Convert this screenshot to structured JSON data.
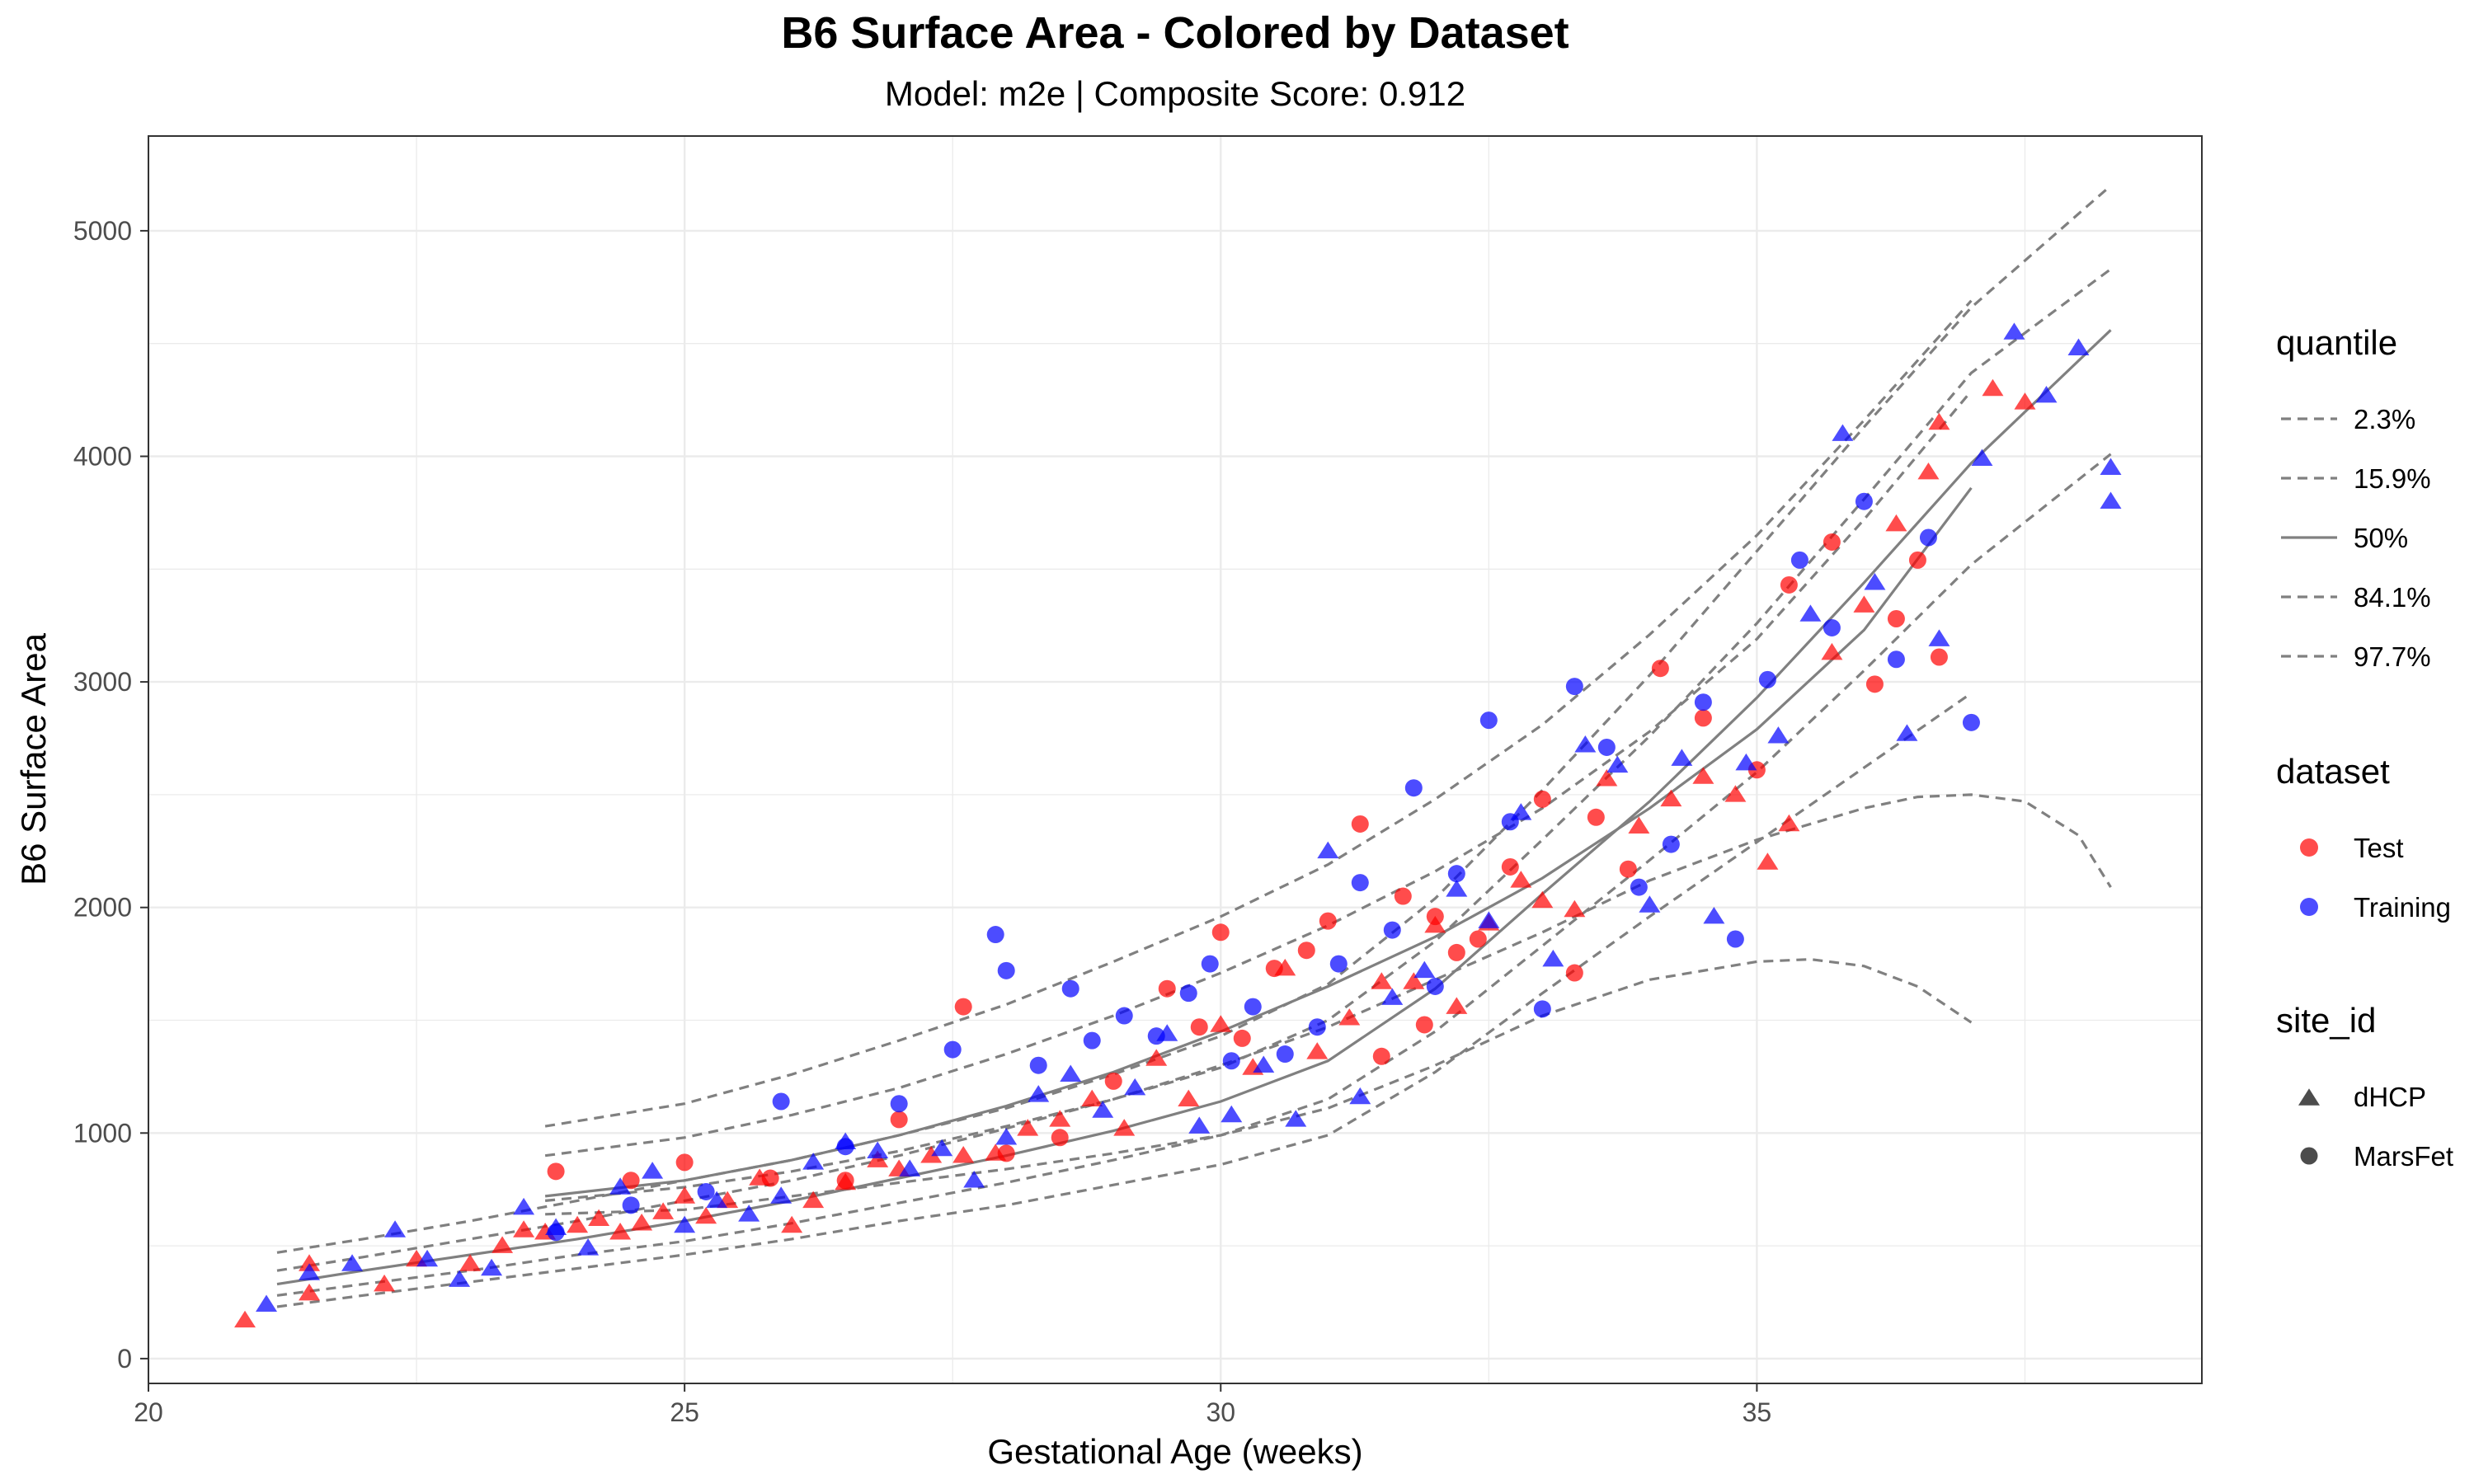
{
  "chart_data": {
    "type": "scatter",
    "title": "B6 Surface Area - Colored by Dataset",
    "subtitle": "Model: m2e | Composite Score: 0.912",
    "xlabel": "Gestational Age (weeks)",
    "ylabel": "B6 Surface Area",
    "xlim": [
      20,
      39.15
    ],
    "ylim": [
      -110,
      5420
    ],
    "x_ticks": [
      20,
      25,
      30,
      35
    ],
    "y_ticks": [
      0,
      1000,
      2000,
      3000,
      4000,
      5000
    ],
    "grid": true,
    "legend_position": "right",
    "colors": {
      "Test": "#ff0000",
      "Training": "#0000ff",
      "quantile_line": "#808080",
      "grid": "#ebebeb",
      "panel_border": "#333333"
    },
    "legends": [
      {
        "title": "quantile",
        "items": [
          {
            "label": "2.3%",
            "line": "dashed"
          },
          {
            "label": "15.9%",
            "line": "dashed"
          },
          {
            "label": "50%",
            "line": "solid"
          },
          {
            "label": "84.1%",
            "line": "dashed"
          },
          {
            "label": "97.7%",
            "line": "dashed"
          }
        ]
      },
      {
        "title": "dataset",
        "items": [
          {
            "label": "Test",
            "color": "#ff0000"
          },
          {
            "label": "Training",
            "color": "#0000ff"
          }
        ]
      },
      {
        "title": "site_id",
        "items": [
          {
            "label": "dHCP",
            "shape": "triangle"
          },
          {
            "label": "MarsFet",
            "shape": "circle"
          }
        ]
      }
    ],
    "quantile_curves": [
      {
        "name": "2.3%",
        "group": "MarsFet",
        "x": [
          23.7,
          25,
          26,
          27,
          28,
          29,
          30,
          31,
          32,
          33,
          34,
          35,
          35.5,
          36,
          36.5,
          37
        ],
        "y": [
          640,
          660,
          720,
          780,
          840,
          910,
          990,
          1110,
          1300,
          1520,
          1680,
          1760,
          1770,
          1740,
          1650,
          1490
        ]
      },
      {
        "name": "15.9%",
        "group": "MarsFet",
        "x": [
          23.7,
          25,
          26,
          27,
          28,
          29,
          30,
          31,
          32,
          33,
          34,
          35,
          36,
          36.5,
          37,
          37.5,
          38,
          38.3
        ],
        "y": [
          700,
          760,
          830,
          920,
          1030,
          1150,
          1300,
          1470,
          1680,
          1890,
          2120,
          2300,
          2440,
          2490,
          2500,
          2470,
          2320,
          2090
        ]
      },
      {
        "name": "50%",
        "group": "MarsFet",
        "x": [
          23.7,
          25,
          26,
          27,
          28,
          29,
          30,
          31,
          32,
          33,
          34,
          35,
          36,
          37
        ],
        "y": [
          720,
          790,
          880,
          990,
          1120,
          1270,
          1450,
          1650,
          1870,
          2130,
          2440,
          2790,
          3230,
          3860
        ]
      },
      {
        "name": "84.1%",
        "group": "MarsFet",
        "x": [
          23.7,
          25,
          26,
          27,
          28,
          29,
          30,
          31,
          32,
          33,
          34,
          35,
          36,
          37
        ],
        "y": [
          900,
          980,
          1080,
          1200,
          1350,
          1520,
          1710,
          1920,
          2160,
          2440,
          2780,
          3190,
          3720,
          4290
        ]
      },
      {
        "name": "97.7%",
        "group": "MarsFet",
        "x": [
          23.7,
          25,
          26,
          27,
          28,
          29,
          30,
          31,
          32,
          33,
          34,
          35,
          36,
          37
        ],
        "y": [
          1030,
          1130,
          1260,
          1410,
          1570,
          1760,
          1960,
          2190,
          2480,
          2810,
          3210,
          3650,
          4160,
          4690
        ]
      },
      {
        "name": "2.3%",
        "group": "dHCP",
        "x": [
          21.2,
          22,
          23,
          24,
          25,
          26,
          27,
          28,
          29,
          30,
          31,
          32,
          33,
          34,
          35,
          36,
          37
        ],
        "y": [
          230,
          280,
          340,
          400,
          460,
          530,
          610,
          680,
          770,
          860,
          990,
          1270,
          1620,
          1960,
          2290,
          2620,
          2950
        ]
      },
      {
        "name": "15.9%",
        "group": "dHCP",
        "x": [
          21.2,
          22,
          23,
          24,
          25,
          26,
          27,
          28,
          29,
          30,
          31,
          32,
          33,
          34,
          35,
          36,
          37,
          38.3
        ],
        "y": [
          280,
          330,
          390,
          460,
          520,
          600,
          690,
          780,
          880,
          990,
          1150,
          1450,
          1830,
          2210,
          2600,
          3050,
          3520,
          4010
        ]
      },
      {
        "name": "50%",
        "group": "dHCP",
        "x": [
          21.2,
          22,
          23,
          24,
          25,
          26,
          27,
          28,
          29,
          30,
          31,
          32,
          33,
          34,
          35,
          36,
          37,
          38.3
        ],
        "y": [
          330,
          390,
          460,
          530,
          610,
          700,
          800,
          900,
          1010,
          1140,
          1320,
          1640,
          2060,
          2470,
          2930,
          3440,
          3970,
          4560
        ]
      },
      {
        "name": "84.1%",
        "group": "dHCP",
        "x": [
          21.2,
          22,
          23,
          24,
          25,
          26,
          27,
          28,
          29,
          30,
          31,
          32,
          33,
          34,
          35,
          36,
          37,
          38.3
        ],
        "y": [
          390,
          450,
          530,
          610,
          700,
          790,
          900,
          1020,
          1150,
          1290,
          1500,
          1850,
          2300,
          2760,
          3260,
          3810,
          4370,
          4830
        ]
      },
      {
        "name": "97.7%",
        "group": "dHCP",
        "x": [
          21.2,
          22,
          23,
          24,
          25,
          26,
          27,
          28,
          29,
          30,
          31,
          32,
          33,
          34,
          35,
          36,
          37,
          38.3
        ],
        "y": [
          470,
          530,
          610,
          700,
          790,
          880,
          990,
          1110,
          1260,
          1430,
          1660,
          2040,
          2520,
          3030,
          3580,
          4130,
          4660,
          5200
        ]
      }
    ],
    "series": [
      {
        "name": "Test",
        "site": "dHCP",
        "color": "#ff0000",
        "shape": "triangle",
        "x": [
          20.9,
          21.5,
          21.5,
          22.2,
          22.5,
          23.0,
          23.3,
          23.5,
          23.7,
          24.0,
          24.2,
          24.4,
          24.6,
          24.8,
          25.0,
          25.2,
          25.4,
          25.7,
          26.0,
          26.2,
          26.5,
          26.8,
          27.0,
          27.3,
          27.6,
          27.9,
          28.2,
          28.5,
          28.8,
          29.1,
          29.4,
          29.7,
          30.0,
          30.3,
          30.6,
          30.9,
          31.2,
          31.5,
          31.8,
          32.0,
          32.2,
          32.5,
          32.8,
          33.0,
          33.3,
          33.6,
          33.9,
          34.2,
          34.5,
          34.8,
          35.1,
          35.3,
          35.7,
          36.0,
          36.3,
          36.6,
          36.7,
          37.2,
          37.5
        ],
        "y": [
          170,
          420,
          290,
          330,
          440,
          420,
          500,
          570,
          560,
          590,
          620,
          560,
          600,
          650,
          720,
          630,
          700,
          800,
          590,
          700,
          780,
          880,
          840,
          900,
          900,
          910,
          1020,
          1060,
          1150,
          1020,
          1330,
          1150,
          1480,
          1290,
          1730,
          1360,
          1510,
          1670,
          1670,
          1920,
          1560,
          1930,
          2120,
          2030,
          1990,
          2570,
          2360,
          2480,
          2580,
          2500,
          2200,
          2370,
          3130,
          3340,
          3700,
          3930,
          4150,
          4300,
          4240
        ]
      },
      {
        "name": "Test",
        "site": "MarsFet",
        "color": "#ff0000",
        "shape": "circle",
        "x": [
          23.8,
          24.5,
          25.0,
          25.8,
          26.5,
          27.0,
          27.6,
          28.0,
          28.5,
          29.0,
          29.5,
          29.8,
          30.0,
          30.2,
          30.5,
          30.8,
          31.0,
          31.3,
          31.5,
          31.7,
          31.9,
          32.0,
          32.2,
          32.4,
          32.7,
          33.0,
          33.3,
          33.5,
          33.8,
          34.1,
          34.5,
          35.0,
          35.3,
          35.7,
          36.1,
          36.3,
          36.5,
          36.7
        ],
        "y": [
          830,
          790,
          870,
          800,
          790,
          1060,
          1560,
          910,
          980,
          1230,
          1640,
          1470,
          1890,
          1420,
          1730,
          1810,
          1940,
          2370,
          1340,
          2050,
          1480,
          1960,
          1800,
          1860,
          2180,
          2480,
          1710,
          2400,
          2170,
          3060,
          2840,
          2610,
          3430,
          3620,
          2990,
          3280,
          3540,
          3110
        ]
      },
      {
        "name": "Training",
        "site": "dHCP",
        "color": "#0000ff",
        "shape": "triangle",
        "x": [
          21.1,
          21.5,
          21.9,
          22.3,
          22.6,
          22.9,
          23.2,
          23.5,
          23.8,
          24.1,
          24.4,
          24.7,
          25.0,
          25.3,
          25.6,
          25.9,
          26.2,
          26.5,
          26.8,
          27.1,
          27.4,
          27.7,
          28.0,
          28.3,
          28.6,
          28.9,
          29.2,
          29.5,
          29.8,
          30.1,
          30.4,
          30.7,
          31.0,
          31.3,
          31.6,
          31.9,
          32.2,
          32.5,
          32.8,
          33.1,
          33.4,
          33.7,
          34.0,
          34.3,
          34.6,
          34.9,
          35.2,
          35.5,
          35.8,
          36.1,
          36.4,
          36.7,
          37.1,
          37.4,
          37.7,
          38.0,
          38.3,
          38.3
        ],
        "y": [
          240,
          380,
          420,
          570,
          440,
          350,
          400,
          670,
          580,
          490,
          760,
          830,
          590,
          700,
          640,
          720,
          870,
          960,
          920,
          840,
          930,
          790,
          980,
          1170,
          1260,
          1100,
          1200,
          1440,
          1030,
          1080,
          1300,
          1060,
          2250,
          1160,
          1600,
          1720,
          2080,
          1940,
          2420,
          1770,
          2720,
          2630,
          2010,
          2660,
          1960,
          2640,
          2760,
          3300,
          4100,
          3440,
          2770,
          3190,
          3990,
          4550,
          4270,
          4480,
          3800,
          3950
        ]
      },
      {
        "name": "Training",
        "site": "MarsFet",
        "color": "#0000ff",
        "shape": "circle",
        "x": [
          23.8,
          24.5,
          25.2,
          25.9,
          26.5,
          27.0,
          27.5,
          27.9,
          28.0,
          28.3,
          28.6,
          28.8,
          29.1,
          29.4,
          29.7,
          29.9,
          30.1,
          30.3,
          30.6,
          30.9,
          31.1,
          31.3,
          31.6,
          31.8,
          32.0,
          32.2,
          32.5,
          32.7,
          33.0,
          33.3,
          33.6,
          33.9,
          34.2,
          34.5,
          34.8,
          35.1,
          35.4,
          35.7,
          36.0,
          36.3,
          36.6,
          37.0
        ],
        "y": [
          560,
          680,
          740,
          1140,
          940,
          1130,
          1370,
          1880,
          1720,
          1300,
          1640,
          1410,
          1520,
          1430,
          1620,
          1750,
          1320,
          1560,
          1350,
          1470,
          1750,
          2110,
          1900,
          2530,
          1650,
          2150,
          2830,
          2380,
          1550,
          2980,
          2710,
          2090,
          2280,
          2910,
          1860,
          3010,
          3540,
          3240,
          3800,
          3100,
          3640,
          2820
        ]
      }
    ]
  }
}
